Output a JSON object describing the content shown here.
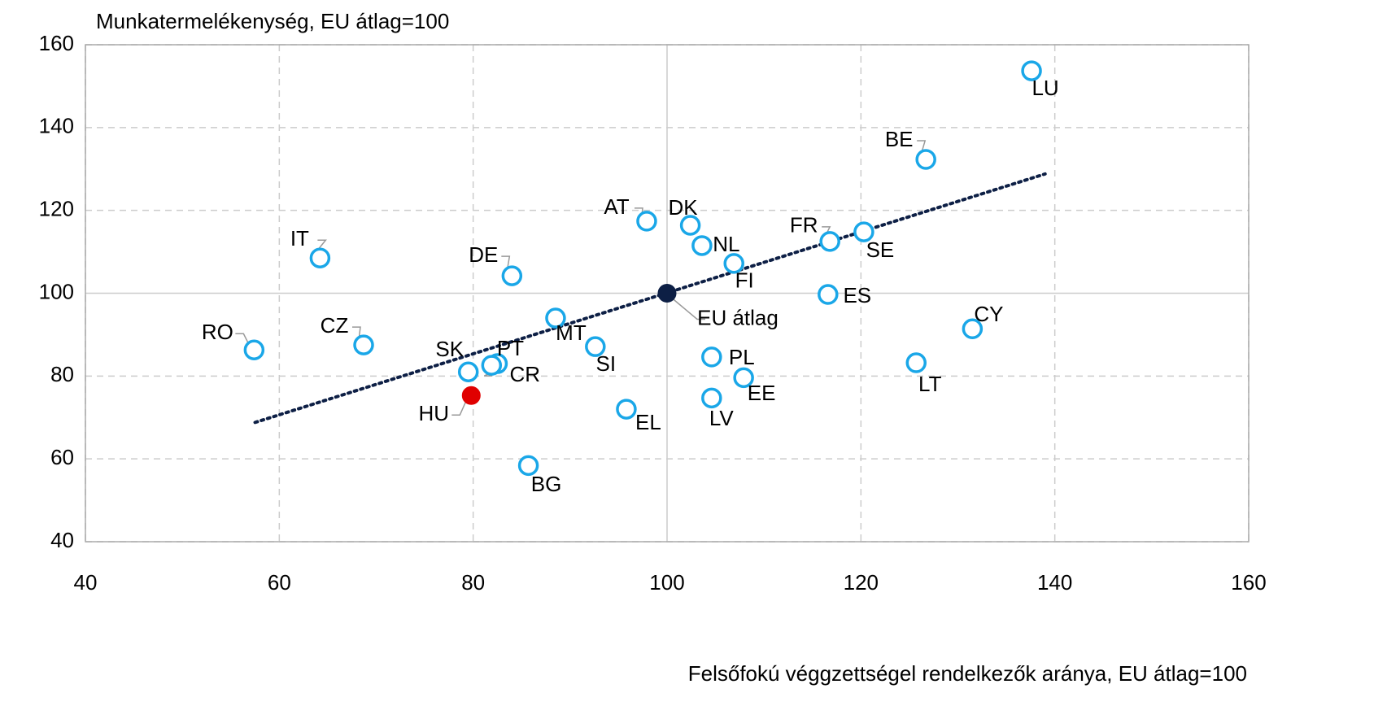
{
  "chart_data": {
    "type": "scatter",
    "title": "Munkatermelékenység, EU átlag=100",
    "x_label": "Felsőfokú véggzettségel rendelkezők aránya, EU átlag=100",
    "labels": [
      "LU",
      "BE",
      "FR",
      "SE",
      "ES",
      "CY",
      "LT",
      "AT",
      "DK",
      "NL",
      "FI",
      "EU átlag",
      "PL",
      "EE",
      "LV",
      "EL",
      "SI",
      "MT",
      "BG",
      "DE",
      "PT",
      "CR",
      "SK",
      "HU",
      "CZ",
      "IT",
      "RO"
    ],
    "x": [
      137.6,
      126.7,
      116.8,
      120.3,
      116.6,
      131.5,
      125.7,
      97.9,
      102.4,
      103.6,
      106.9,
      100,
      104.6,
      107.9,
      104.6,
      95.8,
      92.6,
      88.5,
      85.7,
      84.0,
      82.5,
      81.9,
      79.5,
      79.8,
      68.7,
      64.2,
      57.4
    ],
    "y": [
      153.7,
      132.3,
      112.5,
      114.8,
      99.7,
      91.4,
      83.2,
      117.4,
      116.4,
      111.5,
      107.2,
      100,
      84.6,
      79.6,
      74.7,
      72.0,
      87.1,
      94.0,
      58.4,
      104.2,
      83.0,
      82.6,
      81.0,
      75.3,
      87.5,
      108.5,
      86.3
    ],
    "color": "#1aa7e8",
    "highlight_colors": {
      "HU": "#e00000",
      "EU átlag": "#0d1f45"
    },
    "trendline": {
      "x": [
        57.5,
        139
      ],
      "y": [
        68.8,
        128.8
      ],
      "color": "#0d1f45"
    },
    "xlim": [
      40,
      160
    ],
    "xticks": [
      40,
      60,
      80,
      100,
      120,
      140,
      160
    ],
    "ylim": [
      40,
      160
    ],
    "yticks": [
      40,
      60,
      80,
      100,
      120,
      140,
      160
    ],
    "grid": true
  }
}
